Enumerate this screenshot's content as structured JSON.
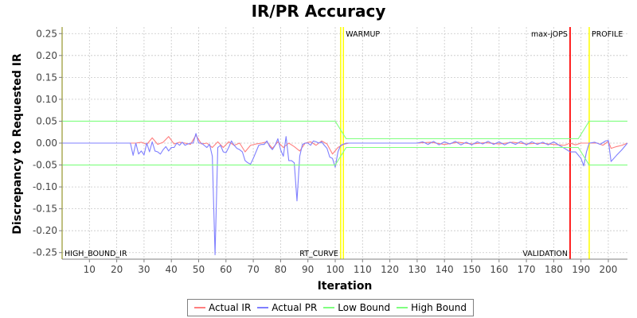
{
  "chart_data": {
    "type": "line",
    "title": "IR/PR Accuracy",
    "xlabel": "Iteration",
    "ylabel": "Discrepancy to Requested IR",
    "xlim": [
      0,
      207
    ],
    "ylim": [
      -0.265,
      0.265
    ],
    "x_ticks": [
      10,
      20,
      30,
      40,
      50,
      60,
      70,
      80,
      90,
      100,
      110,
      120,
      130,
      140,
      150,
      160,
      170,
      180,
      190,
      200
    ],
    "y_ticks": [
      0.25,
      0.2,
      0.15,
      0.1,
      0.05,
      0.0,
      -0.05,
      -0.1,
      -0.15,
      -0.2,
      -0.25
    ],
    "y_tick_labels": [
      "0.25",
      "0.20",
      "0.15",
      "0.10",
      "0.05",
      "0.00",
      "-0.05",
      "-0.10",
      "-0.15",
      "-0.20",
      "-0.25"
    ],
    "grid": true,
    "legend_position": "bottom",
    "markers": [
      {
        "label": "HIGH_BOUND_IR",
        "x": 0,
        "color": "#ffff00",
        "label_pos": "bottom-right"
      },
      {
        "label": "WARMUP",
        "x": 103,
        "color": "#ffff00",
        "label_pos": "top-right"
      },
      {
        "label": "RT_CURVE",
        "x": 102,
        "color": "#ffff00",
        "label_pos": "bottom-left"
      },
      {
        "label": "max-jOPS",
        "x": 186,
        "color": "#ff0000",
        "label_pos": "top-left"
      },
      {
        "label": "VALIDATION",
        "x": 186,
        "color": "#ff0000",
        "label_pos": "bottom-left"
      },
      {
        "label": "PROFILE",
        "x": 193,
        "color": "#ffff00",
        "label_pos": "top-right"
      }
    ],
    "series": [
      {
        "name": "Actual IR",
        "color": "#ff7f7f",
        "points": [
          [
            0,
            0
          ],
          [
            25,
            0
          ],
          [
            27,
            0
          ],
          [
            29,
            0.002
          ],
          [
            31,
            -0.003
          ],
          [
            33,
            0.012
          ],
          [
            35,
            -0.003
          ],
          [
            37,
            0.002
          ],
          [
            39,
            0.015
          ],
          [
            41,
            -0.002
          ],
          [
            43,
            0.002
          ],
          [
            45,
            0.0
          ],
          [
            47,
            -0.003
          ],
          [
            49,
            0.018
          ],
          [
            51,
            -0.002
          ],
          [
            53,
            0.0
          ],
          [
            55,
            -0.01
          ],
          [
            57,
            0.003
          ],
          [
            59,
            -0.01
          ],
          [
            61,
            0.003
          ],
          [
            63,
            -0.005
          ],
          [
            65,
            0.0
          ],
          [
            67,
            -0.02
          ],
          [
            69,
            -0.005
          ],
          [
            71,
            -0.002
          ],
          [
            73,
            0.0
          ],
          [
            75,
            0.003
          ],
          [
            77,
            -0.012
          ],
          [
            79,
            0.003
          ],
          [
            81,
            -0.01
          ],
          [
            83,
            0.0
          ],
          [
            85,
            -0.008
          ],
          [
            87,
            -0.018
          ],
          [
            89,
            0.0
          ],
          [
            91,
            0.003
          ],
          [
            93,
            -0.005
          ],
          [
            95,
            0.005
          ],
          [
            97,
            -0.002
          ],
          [
            99,
            -0.025
          ],
          [
            101,
            -0.01
          ],
          [
            103,
            -0.003
          ],
          [
            105,
            0.0
          ],
          [
            130,
            0.0
          ],
          [
            135,
            0.002
          ],
          [
            140,
            -0.003
          ],
          [
            145,
            0.002
          ],
          [
            150,
            -0.002
          ],
          [
            155,
            0.001
          ],
          [
            160,
            -0.002
          ],
          [
            165,
            0.002
          ],
          [
            170,
            -0.002
          ],
          [
            175,
            0.0
          ],
          [
            180,
            -0.003
          ],
          [
            184,
            -0.005
          ],
          [
            186,
            0.0
          ],
          [
            188,
            -0.004
          ],
          [
            190,
            0.0
          ],
          [
            193,
            0.0
          ],
          [
            196,
            0.0
          ],
          [
            198,
            -0.005
          ],
          [
            200,
            0.004
          ],
          [
            201,
            -0.012
          ],
          [
            203,
            -0.008
          ],
          [
            205,
            -0.005
          ],
          [
            207,
            0.0
          ]
        ]
      },
      {
        "name": "Actual PR",
        "color": "#7f7fff",
        "points": [
          [
            0,
            0
          ],
          [
            25,
            0
          ],
          [
            26,
            -0.028
          ],
          [
            27,
            0.0
          ],
          [
            28,
            -0.025
          ],
          [
            29,
            -0.018
          ],
          [
            30,
            -0.027
          ],
          [
            31,
            0.0
          ],
          [
            32,
            -0.02
          ],
          [
            33,
            0.003
          ],
          [
            34,
            -0.018
          ],
          [
            35,
            -0.02
          ],
          [
            36,
            -0.025
          ],
          [
            37,
            -0.015
          ],
          [
            38,
            -0.008
          ],
          [
            39,
            -0.018
          ],
          [
            40,
            -0.01
          ],
          [
            41,
            -0.01
          ],
          [
            42,
            0.0
          ],
          [
            43,
            -0.005
          ],
          [
            44,
            0.002
          ],
          [
            45,
            -0.005
          ],
          [
            46,
            -0.002
          ],
          [
            47,
            0.0
          ],
          [
            48,
            0.0
          ],
          [
            49,
            0.022
          ],
          [
            50,
            0.0
          ],
          [
            51,
            0.0
          ],
          [
            52,
            -0.005
          ],
          [
            53,
            -0.01
          ],
          [
            54,
            -0.003
          ],
          [
            55,
            -0.03
          ],
          [
            56,
            -0.255
          ],
          [
            57,
            -0.01
          ],
          [
            58,
            -0.005
          ],
          [
            59,
            -0.02
          ],
          [
            60,
            -0.022
          ],
          [
            61,
            -0.01
          ],
          [
            62,
            0.005
          ],
          [
            63,
            -0.005
          ],
          [
            64,
            -0.012
          ],
          [
            65,
            -0.015
          ],
          [
            66,
            -0.02
          ],
          [
            67,
            -0.04
          ],
          [
            68,
            -0.045
          ],
          [
            69,
            -0.048
          ],
          [
            70,
            -0.035
          ],
          [
            71,
            -0.02
          ],
          [
            72,
            -0.005
          ],
          [
            73,
            -0.003
          ],
          [
            74,
            -0.003
          ],
          [
            75,
            0.005
          ],
          [
            76,
            -0.008
          ],
          [
            77,
            -0.015
          ],
          [
            78,
            -0.005
          ],
          [
            79,
            0.01
          ],
          [
            80,
            -0.015
          ],
          [
            81,
            -0.03
          ],
          [
            82,
            0.015
          ],
          [
            83,
            -0.04
          ],
          [
            84,
            -0.04
          ],
          [
            85,
            -0.045
          ],
          [
            86,
            -0.132
          ],
          [
            87,
            -0.03
          ],
          [
            88,
            -0.003
          ],
          [
            89,
            0.0
          ],
          [
            90,
            0.0
          ],
          [
            91,
            -0.005
          ],
          [
            92,
            0.005
          ],
          [
            93,
            0.003
          ],
          [
            94,
            0.0
          ],
          [
            95,
            0.003
          ],
          [
            96,
            -0.005
          ],
          [
            97,
            -0.012
          ],
          [
            98,
            -0.032
          ],
          [
            99,
            -0.035
          ],
          [
            100,
            -0.055
          ],
          [
            101,
            -0.02
          ],
          [
            102,
            -0.005
          ],
          [
            104,
            0.0
          ],
          [
            130,
            0.0
          ],
          [
            132,
            0.003
          ],
          [
            134,
            -0.003
          ],
          [
            136,
            0.004
          ],
          [
            138,
            -0.004
          ],
          [
            140,
            0.003
          ],
          [
            142,
            -0.002
          ],
          [
            144,
            0.004
          ],
          [
            146,
            -0.004
          ],
          [
            148,
            0.002
          ],
          [
            150,
            -0.004
          ],
          [
            152,
            0.003
          ],
          [
            154,
            -0.002
          ],
          [
            156,
            0.004
          ],
          [
            158,
            -0.003
          ],
          [
            160,
            0.003
          ],
          [
            162,
            -0.004
          ],
          [
            164,
            0.002
          ],
          [
            166,
            -0.003
          ],
          [
            168,
            0.004
          ],
          [
            170,
            -0.004
          ],
          [
            172,
            0.003
          ],
          [
            174,
            -0.003
          ],
          [
            176,
            0.002
          ],
          [
            178,
            -0.004
          ],
          [
            180,
            0.003
          ],
          [
            182,
            -0.005
          ],
          [
            184,
            -0.012
          ],
          [
            186,
            -0.02
          ],
          [
            188,
            -0.02
          ],
          [
            190,
            -0.035
          ],
          [
            191,
            -0.052
          ],
          [
            192,
            -0.02
          ],
          [
            193,
            0.0
          ],
          [
            195,
            0.002
          ],
          [
            197,
            -0.003
          ],
          [
            199,
            0.005
          ],
          [
            200,
            0.006
          ],
          [
            201,
            -0.042
          ],
          [
            203,
            -0.028
          ],
          [
            205,
            -0.015
          ],
          [
            207,
            0.0
          ]
        ]
      },
      {
        "name": "Low Bound",
        "color": "#7fff7f",
        "points": [
          [
            0,
            -0.05
          ],
          [
            100,
            -0.05
          ],
          [
            104,
            -0.01
          ],
          [
            189,
            -0.01
          ],
          [
            193,
            -0.05
          ],
          [
            207,
            -0.05
          ]
        ]
      },
      {
        "name": "High Bound",
        "color": "#7fff7f",
        "points": [
          [
            0,
            0.05
          ],
          [
            100,
            0.05
          ],
          [
            104,
            0.01
          ],
          [
            189,
            0.01
          ],
          [
            193,
            0.05
          ],
          [
            207,
            0.05
          ]
        ]
      }
    ]
  }
}
